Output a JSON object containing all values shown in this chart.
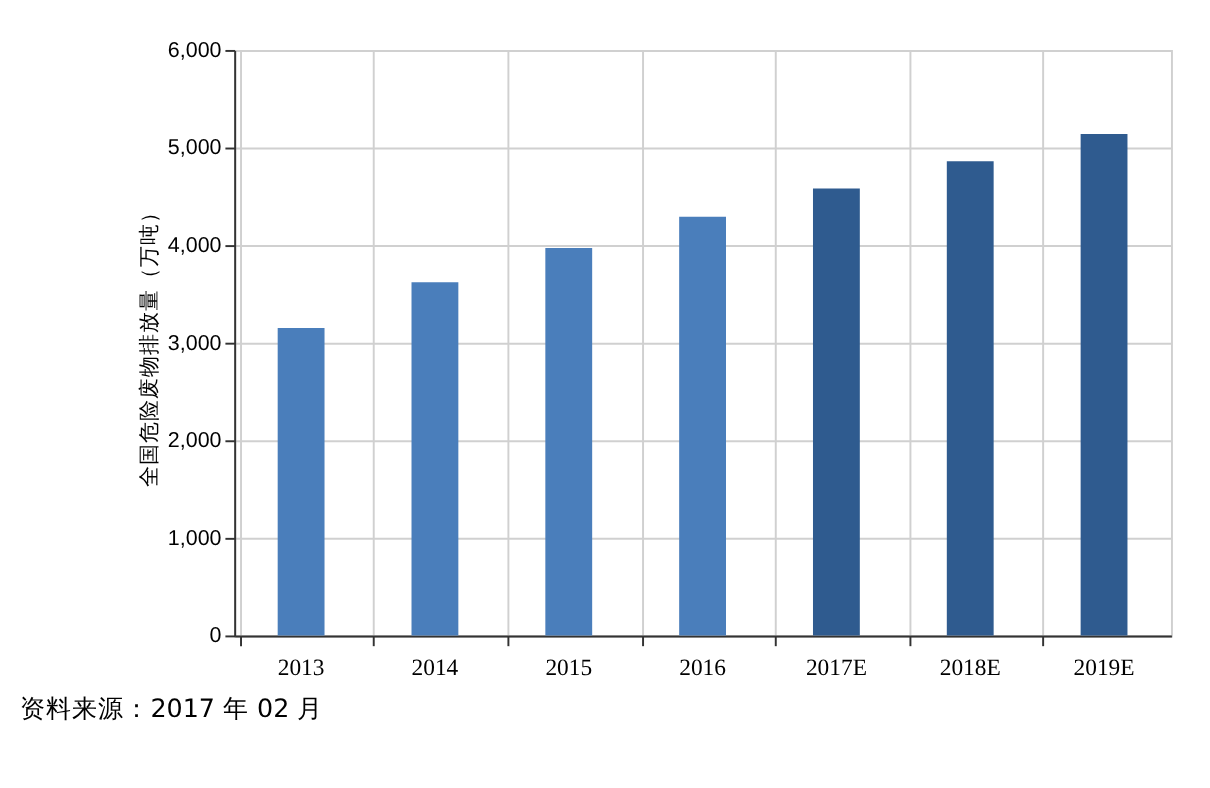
{
  "chart_data": {
    "type": "bar",
    "categories": [
      "2013",
      "2014",
      "2015",
      "2016",
      "2017E",
      "2018E",
      "2019E"
    ],
    "values": [
      3150,
      3620,
      3970,
      4290,
      4580,
      4860,
      5140
    ],
    "colors": [
      "#4a7ebb",
      "#4a7ebb",
      "#4a7ebb",
      "#4a7ebb",
      "#2f5b8f",
      "#2f5b8f",
      "#2f5b8f"
    ],
    "ylabel": "全国危险废物排放量（万吨）",
    "ylim": [
      0,
      6000
    ],
    "yticks": [
      {
        "value": 0,
        "label": "0"
      },
      {
        "value": 1000,
        "label": "1,000"
      },
      {
        "value": 2000,
        "label": "2,000"
      },
      {
        "value": 3000,
        "label": "3,000"
      },
      {
        "value": 4000,
        "label": "4,000"
      },
      {
        "value": 5000,
        "label": "5,000"
      },
      {
        "value": 6000,
        "label": "6,000"
      }
    ],
    "grid": true,
    "annotations": [
      "资料来源：2017 年 02 月"
    ]
  }
}
